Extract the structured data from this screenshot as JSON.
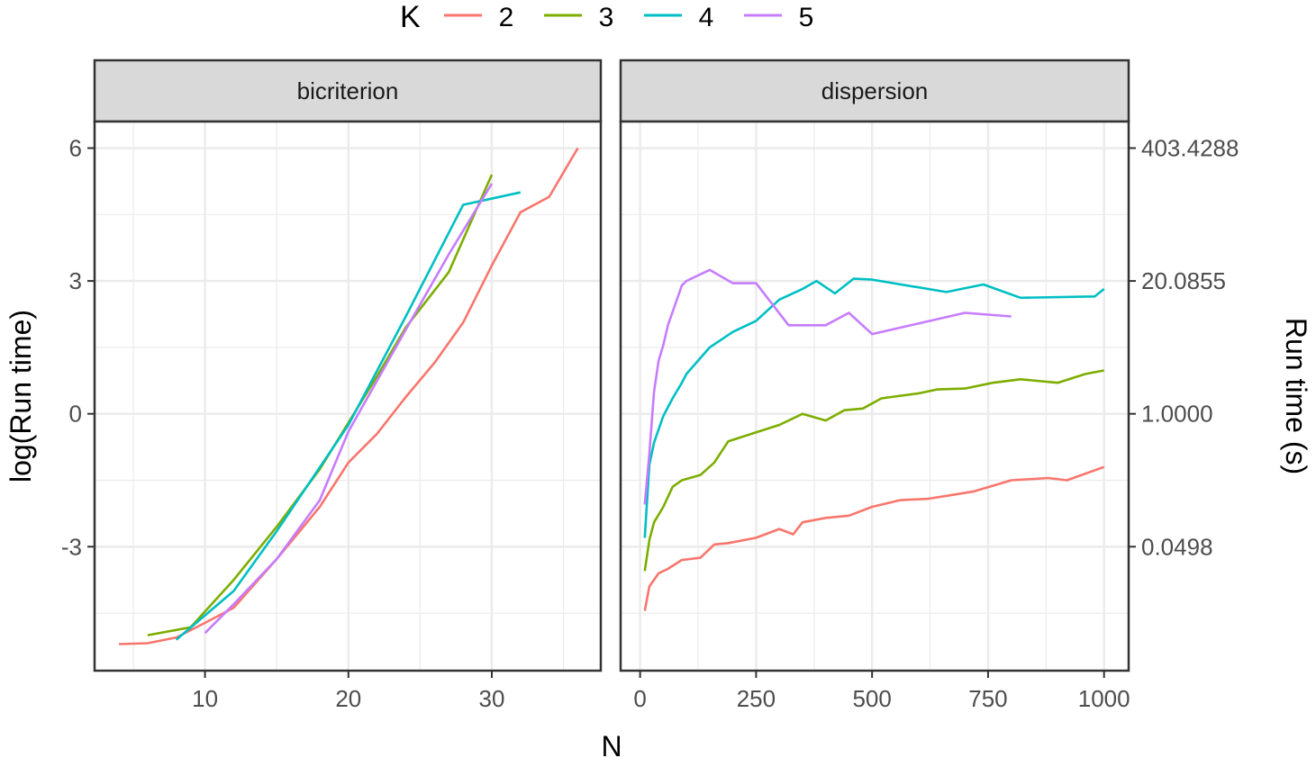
{
  "chart_data": {
    "type": "line",
    "title": "",
    "xlabel": "N",
    "ylabel": "log(Run time)",
    "ylabel_secondary": "Run time (s)",
    "legend": {
      "title": "K",
      "position": "top",
      "entries": [
        {
          "label": "2",
          "color": "#F8766D"
        },
        {
          "label": "3",
          "color": "#7CAE00"
        },
        {
          "label": "4",
          "color": "#00BFC4"
        },
        {
          "label": "5",
          "color": "#C77CFF"
        }
      ]
    },
    "y_ticks": [
      {
        "value": 6,
        "label": "6",
        "secondary_label": "403.4288"
      },
      {
        "value": 3,
        "label": "3",
        "secondary_label": "20.0855"
      },
      {
        "value": 0,
        "label": "0",
        "secondary_label": "1.0000"
      },
      {
        "value": -3,
        "label": "-3",
        "secondary_label": "0.0498"
      }
    ],
    "ylim": [
      -5.8,
      6.6
    ],
    "grid": true,
    "panels": [
      {
        "strip_label": "bicriterion",
        "xlim": [
          2.3,
          37.6
        ],
        "x_ticks": [
          10,
          20,
          30
        ],
        "x_tick_labels": [
          "10",
          "20",
          "30"
        ],
        "series": [
          {
            "name": "2",
            "x": [
              4,
              6,
              8,
              10,
              12,
              15,
              18,
              20,
              22,
              24,
              26,
              28,
              30,
              32,
              34,
              36
            ],
            "y": [
              -5.2,
              -5.18,
              -5.05,
              -4.72,
              -4.38,
              -3.28,
              -2.1,
              -1.1,
              -0.45,
              0.38,
              1.15,
              2.06,
              3.35,
              4.55,
              4.9,
              6.0
            ]
          },
          {
            "name": "3",
            "x": [
              6,
              9,
              12,
              15,
              18,
              20,
              22,
              24,
              27,
              30
            ],
            "y": [
              -5.0,
              -4.82,
              -3.75,
              -2.55,
              -1.25,
              -0.2,
              0.85,
              1.95,
              3.2,
              5.4
            ]
          },
          {
            "name": "4",
            "x": [
              8,
              12,
              15,
              20,
              24,
              28,
              32
            ],
            "y": [
              -5.1,
              -4.0,
              -2.65,
              -0.25,
              2.2,
              4.72,
              5.0
            ]
          },
          {
            "name": "5",
            "x": [
              10,
              12,
              15,
              18,
              20,
              24,
              27,
              30
            ],
            "y": [
              -4.95,
              -4.3,
              -3.28,
              -1.95,
              -0.4,
              1.9,
              3.6,
              5.2
            ]
          }
        ]
      },
      {
        "strip_label": "dispersion",
        "xlim": [
          -42,
          1053
        ],
        "x_ticks": [
          0,
          250,
          500,
          750,
          1000
        ],
        "x_tick_labels": [
          "0",
          "250",
          "500",
          "750",
          "1000"
        ],
        "series": [
          {
            "name": "2",
            "x": [
              10,
              20,
              40,
              60,
              90,
              130,
              160,
              190,
              250,
              300,
              330,
              350,
              400,
              450,
              500,
              560,
              620,
              680,
              720,
              800,
              880,
              920,
              1000
            ],
            "y": [
              -4.45,
              -3.9,
              -3.6,
              -3.5,
              -3.3,
              -3.25,
              -2.95,
              -2.92,
              -2.8,
              -2.6,
              -2.72,
              -2.45,
              -2.35,
              -2.3,
              -2.1,
              -1.95,
              -1.92,
              -1.82,
              -1.75,
              -1.5,
              -1.45,
              -1.5,
              -1.2
            ]
          },
          {
            "name": "3",
            "x": [
              10,
              20,
              30,
              50,
              70,
              90,
              130,
              160,
              190,
              250,
              300,
              350,
              400,
              440,
              480,
              520,
              600,
              640,
              700,
              760,
              820,
              900,
              960,
              1000
            ],
            "y": [
              -3.55,
              -2.85,
              -2.45,
              -2.1,
              -1.65,
              -1.5,
              -1.38,
              -1.1,
              -0.62,
              -0.42,
              -0.25,
              0.0,
              -0.15,
              0.08,
              0.12,
              0.35,
              0.46,
              0.55,
              0.57,
              0.7,
              0.78,
              0.7,
              0.9,
              0.98
            ]
          },
          {
            "name": "4",
            "x": [
              10,
              20,
              30,
              50,
              70,
              90,
              100,
              150,
              200,
              250,
              300,
              350,
              380,
              420,
              460,
              500,
              660,
              740,
              820,
              980,
              1000
            ],
            "y": [
              -2.8,
              -1.15,
              -0.65,
              -0.05,
              0.35,
              0.7,
              0.9,
              1.5,
              1.85,
              2.1,
              2.58,
              2.82,
              3.0,
              2.72,
              3.05,
              3.03,
              2.75,
              2.92,
              2.62,
              2.65,
              2.82
            ]
          },
          {
            "name": "5",
            "x": [
              10,
              20,
              30,
              40,
              50,
              60,
              70,
              90,
              100,
              150,
              200,
              250,
              320,
              400,
              450,
              500,
              700,
              800
            ],
            "y": [
              -2.05,
              -0.9,
              0.5,
              1.2,
              1.55,
              2.0,
              2.3,
              2.9,
              3.0,
              3.25,
              2.95,
              2.95,
              2.0,
              2.0,
              2.28,
              1.8,
              2.28,
              2.2
            ]
          }
        ]
      }
    ]
  }
}
